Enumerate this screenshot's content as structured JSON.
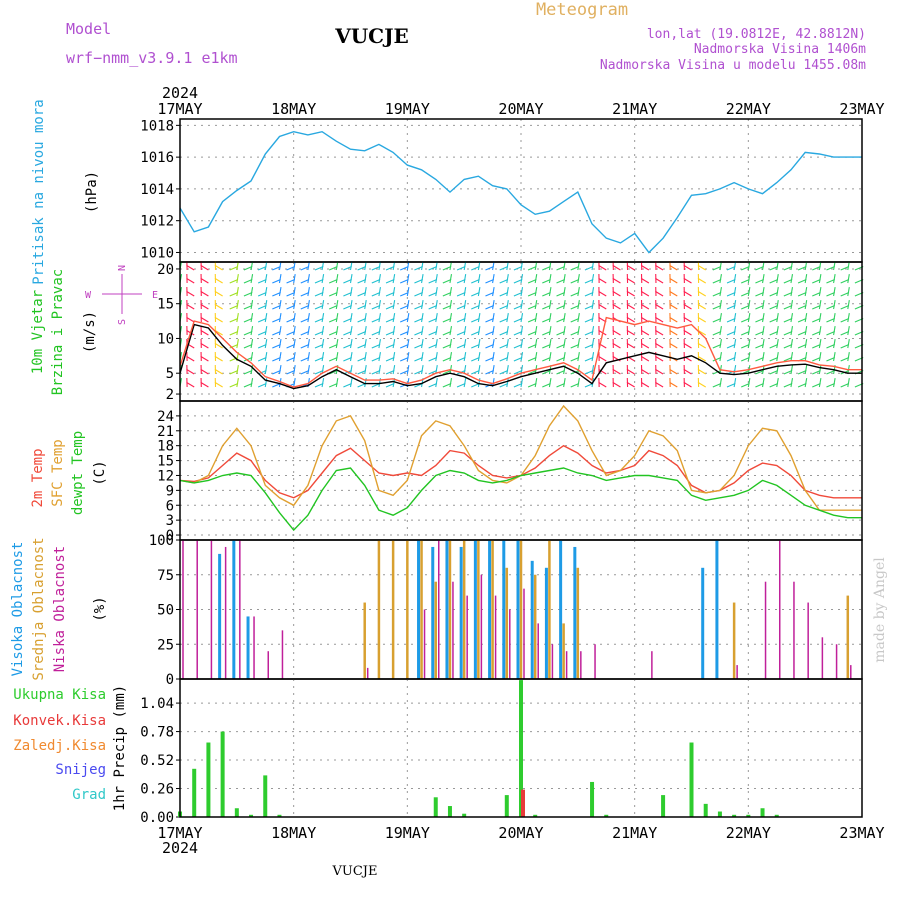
{
  "header": {
    "model_label": "Model",
    "model_name": "wrf−nmm_v3.9.1  e1km",
    "station": "VUCJE",
    "product": "Meteogram",
    "coords": "lon,lat (19.0812E, 42.8812N)",
    "elevation": "Nadmorska Visina 1406m",
    "model_elevation": "Nadmorska Visina u modelu 1455.08m",
    "footer_station": "VUCJE",
    "watermark": "made by Angel"
  },
  "time_axis": {
    "year": "2024",
    "days": [
      "17MAY",
      "18MAY",
      "19MAY",
      "20MAY",
      "21MAY",
      "22MAY",
      "23MAY"
    ]
  },
  "colors": {
    "pressure": "#29a8e0",
    "wind_speed": "#000000",
    "wind_gust": "#ff5a40",
    "temp_2m": "#f04a3a",
    "temp_sfc": "#e0a030",
    "dewpoint": "#22c422",
    "cloud_high": "#1e9be6",
    "cloud_mid": "#d8a030",
    "cloud_low": "#c0209a",
    "precip_total": "#2ecc2e",
    "precip_conv": "#e83a3a",
    "precip_frozen": "#f08a30",
    "precip_snow": "#4a4af0",
    "precip_graupel": "#30c8c8",
    "wind_label": "#c040c0"
  },
  "panels": {
    "pressure": {
      "ylabel": "Pritisak na nivou mora",
      "unit": "(hPa)"
    },
    "wind": {
      "ylabel1": "10m Vjetar",
      "ylabel2": "Brzina i Pravac",
      "unit": "(m/s)",
      "compass": [
        "N",
        "W",
        "E",
        "S"
      ]
    },
    "temp": {
      "ylabel1": "2m Temp",
      "ylabel2": "SFC Temp",
      "ylabel3": "dewpt Temp",
      "unit": "(C)"
    },
    "cloud": {
      "ylabel1": "Visoka Oblacnost",
      "ylabel2": "Srednja Oblacnost",
      "ylabel3": "Niska Oblacnost",
      "unit": "(%)"
    },
    "precip": {
      "unit": "1hr Precip (mm)",
      "legend": [
        "Ukupna Kisa",
        "Konvek.Kisa",
        "Zaledj.Kisa",
        "Snijeg",
        "Grad"
      ]
    }
  },
  "chart_data": [
    {
      "type": "line",
      "name": "pressure",
      "x_hours": [
        0,
        3,
        6,
        9,
        12,
        15,
        18,
        21,
        24,
        27,
        30,
        33,
        36,
        39,
        42,
        45,
        48,
        51,
        54,
        57,
        60,
        63,
        66,
        69,
        72,
        75,
        78,
        81,
        84,
        87,
        90,
        93,
        96,
        99,
        102,
        105,
        108,
        111,
        114,
        117,
        120,
        123,
        126,
        129,
        132,
        135,
        138,
        141,
        144
      ],
      "series": [
        {
          "values": [
            1012.8,
            1011.3,
            1011.6,
            1013.2,
            1013.9,
            1014.5,
            1016.2,
            1017.3,
            1017.6,
            1017.4,
            1017.6,
            1017.0,
            1016.5,
            1016.4,
            1016.8,
            1016.3,
            1015.5,
            1015.2,
            1014.6,
            1013.8,
            1014.6,
            1014.8,
            1014.2,
            1014.0,
            1013.0,
            1012.4,
            1012.6,
            1013.2,
            1013.8,
            1011.8,
            1010.9,
            1010.6,
            1011.2,
            1010.0,
            1010.9,
            1012.2,
            1013.6,
            1013.7,
            1014.0,
            1014.4,
            1014.0,
            1013.7,
            1014.4,
            1015.2,
            1016.3,
            1016.2,
            1016.0,
            1016.0,
            1016.0
          ]
        }
      ],
      "yticks": [
        1010,
        1012,
        1014,
        1016,
        1018
      ],
      "ylim": [
        1009.4,
        1018.4
      ]
    },
    {
      "type": "line",
      "name": "wind",
      "x_hours": [
        0,
        3,
        6,
        9,
        12,
        15,
        18,
        21,
        24,
        27,
        30,
        33,
        36,
        39,
        42,
        45,
        48,
        51,
        54,
        57,
        60,
        63,
        66,
        69,
        72,
        75,
        78,
        81,
        84,
        87,
        90,
        93,
        96,
        99,
        102,
        105,
        108,
        111,
        114,
        117,
        120,
        123,
        126,
        129,
        132,
        135,
        138,
        141,
        144
      ],
      "series": [
        {
          "values": [
            5,
            12,
            11.5,
            9,
            7,
            6,
            4,
            3.5,
            2.8,
            3.2,
            4.5,
            5.5,
            4.5,
            3.5,
            3.5,
            3.8,
            3.2,
            3.5,
            4.5,
            5,
            4.5,
            3.5,
            3.2,
            3.8,
            4.5,
            5,
            5.5,
            6,
            5,
            3.5,
            6.5,
            7,
            7.5,
            8,
            7.5,
            7,
            7.5,
            6.5,
            5,
            4.8,
            5,
            5.5,
            6,
            6.2,
            6.3,
            5.8,
            5.5,
            5,
            5
          ]
        },
        {
          "values": [
            6,
            12.5,
            12,
            10,
            8,
            6.5,
            4.5,
            3.8,
            3,
            3.5,
            5,
            6,
            5,
            4,
            4,
            4.2,
            3.5,
            4,
            5,
            5.5,
            5,
            4,
            3.5,
            4.2,
            5,
            5.5,
            6,
            6.5,
            5.5,
            4,
            13,
            12.5,
            12,
            12.5,
            12,
            11.5,
            12,
            10,
            5.5,
            5.2,
            5.5,
            6,
            6.5,
            6.8,
            6.8,
            6.2,
            6,
            5.5,
            5.5
          ]
        }
      ],
      "yticks": [
        2,
        5,
        10,
        15,
        20
      ],
      "ylim": [
        1,
        21
      ]
    },
    {
      "type": "line",
      "name": "temperature",
      "x_hours": [
        0,
        3,
        6,
        9,
        12,
        15,
        18,
        21,
        24,
        27,
        30,
        33,
        36,
        39,
        42,
        45,
        48,
        51,
        54,
        57,
        60,
        63,
        66,
        69,
        72,
        75,
        78,
        81,
        84,
        87,
        90,
        93,
        96,
        99,
        102,
        105,
        108,
        111,
        114,
        117,
        120,
        123,
        126,
        129,
        132,
        135,
        138,
        141,
        144
      ],
      "series": [
        {
          "values": [
            11,
            10.8,
            11.5,
            14,
            16.5,
            15,
            11,
            8.5,
            7.5,
            9,
            12.5,
            16,
            17.5,
            15,
            12.5,
            12,
            12.5,
            12,
            14,
            17,
            16.5,
            14,
            12,
            11.5,
            12,
            13.5,
            16,
            18,
            16.5,
            14,
            12.5,
            13,
            14,
            17,
            16,
            14,
            10,
            8.5,
            9,
            10.5,
            13,
            14.5,
            14,
            12,
            9,
            8,
            7.5,
            7.5,
            7.5
          ]
        },
        {
          "values": [
            11,
            10.5,
            12,
            18,
            21.5,
            18,
            10,
            7.5,
            6,
            10,
            18,
            23,
            24,
            19,
            9,
            8,
            11,
            20,
            23,
            22,
            18,
            13,
            11,
            10.5,
            12,
            16,
            22,
            26,
            23,
            17,
            12,
            13,
            16,
            21,
            20,
            17,
            9,
            8.5,
            9,
            12,
            18,
            21.5,
            21,
            16,
            9,
            5,
            5,
            5,
            5
          ]
        },
        {
          "values": [
            11,
            10.5,
            11,
            12,
            12.5,
            12,
            8.5,
            4.5,
            1,
            4,
            9,
            13,
            13.5,
            10,
            5,
            4,
            5.5,
            9,
            12,
            13,
            12.5,
            11,
            10.5,
            11,
            12,
            12.5,
            13,
            13.5,
            12.5,
            12,
            11,
            11.5,
            12,
            12,
            11.5,
            11,
            8,
            7,
            7.5,
            8,
            9,
            11,
            10,
            8,
            6,
            5,
            4,
            3.5,
            3.5
          ]
        }
      ],
      "yticks": [
        0,
        3,
        6,
        9,
        12,
        15,
        18,
        21,
        24
      ],
      "ylim": [
        -1,
        27
      ]
    },
    {
      "type": "bar",
      "name": "cloud",
      "x_hours": [
        0,
        3,
        6,
        9,
        12,
        15,
        18,
        21,
        24,
        27,
        30,
        33,
        36,
        39,
        42,
        45,
        48,
        51,
        54,
        57,
        60,
        63,
        66,
        69,
        72,
        75,
        78,
        81,
        84,
        87,
        90,
        93,
        96,
        99,
        102,
        105,
        108,
        111,
        114,
        117,
        120,
        123,
        126,
        129,
        132,
        135,
        138,
        141,
        144
      ],
      "series": [
        {
          "values": [
            0,
            0,
            0,
            90,
            100,
            45,
            0,
            0,
            0,
            0,
            0,
            0,
            0,
            0,
            0,
            0,
            0,
            100,
            95,
            100,
            95,
            100,
            100,
            100,
            100,
            85,
            80,
            100,
            95,
            0,
            0,
            0,
            0,
            0,
            0,
            0,
            0,
            80,
            100,
            0,
            0,
            0,
            0,
            0,
            0,
            0,
            0,
            0,
            0
          ]
        },
        {
          "values": [
            0,
            0,
            0,
            0,
            0,
            0,
            0,
            0,
            0,
            0,
            0,
            0,
            0,
            55,
            100,
            100,
            100,
            100,
            70,
            100,
            100,
            100,
            100,
            80,
            100,
            75,
            100,
            40,
            80,
            0,
            0,
            0,
            0,
            0,
            0,
            0,
            0,
            0,
            0,
            55,
            0,
            0,
            0,
            0,
            0,
            0,
            0,
            60,
            0
          ]
        },
        {
          "values": [
            100,
            100,
            100,
            95,
            100,
            45,
            20,
            35,
            0,
            0,
            0,
            0,
            0,
            8,
            0,
            0,
            0,
            50,
            100,
            70,
            60,
            75,
            60,
            50,
            65,
            40,
            25,
            20,
            20,
            25,
            0,
            0,
            0,
            20,
            0,
            0,
            0,
            0,
            0,
            10,
            0,
            70,
            100,
            70,
            55,
            30,
            25,
            10,
            0
          ]
        }
      ],
      "yticks": [
        0,
        25,
        50,
        75,
        100
      ],
      "ylim": [
        0,
        100
      ]
    },
    {
      "type": "bar",
      "name": "precipitation",
      "x_hours": [
        0,
        3,
        6,
        9,
        12,
        15,
        18,
        21,
        24,
        27,
        30,
        33,
        36,
        39,
        42,
        45,
        48,
        51,
        54,
        57,
        60,
        63,
        66,
        69,
        72,
        75,
        78,
        81,
        84,
        87,
        90,
        93,
        96,
        99,
        102,
        105,
        108,
        111,
        114,
        117,
        120,
        123,
        126,
        129,
        132,
        135,
        138,
        141,
        144
      ],
      "series": [
        {
          "values": [
            0.05,
            0.44,
            0.68,
            0.78,
            0.08,
            0.02,
            0.38,
            0.02,
            0,
            0,
            0,
            0,
            0,
            0,
            0,
            0,
            0,
            0,
            0.18,
            0.1,
            0.03,
            0,
            0,
            0.2,
            1.25,
            0.02,
            0,
            0,
            0,
            0.32,
            0.02,
            0,
            0,
            0,
            0.2,
            0,
            0.68,
            0.12,
            0.05,
            0.02,
            0.02,
            0.08,
            0.02,
            0,
            0,
            0,
            0,
            0,
            0
          ]
        },
        {
          "values": [
            0,
            0,
            0,
            0,
            0,
            0,
            0,
            0,
            0,
            0,
            0,
            0,
            0,
            0,
            0,
            0,
            0,
            0,
            0,
            0,
            0,
            0,
            0,
            0,
            0.25,
            0,
            0,
            0,
            0,
            0,
            0,
            0,
            0,
            0,
            0,
            0,
            0,
            0,
            0,
            0,
            0,
            0,
            0,
            0,
            0,
            0,
            0,
            0,
            0
          ]
        }
      ],
      "yticks": [
        0,
        0.26,
        0.52,
        0.78,
        1.04
      ],
      "ylim": [
        0,
        1.26
      ]
    }
  ]
}
